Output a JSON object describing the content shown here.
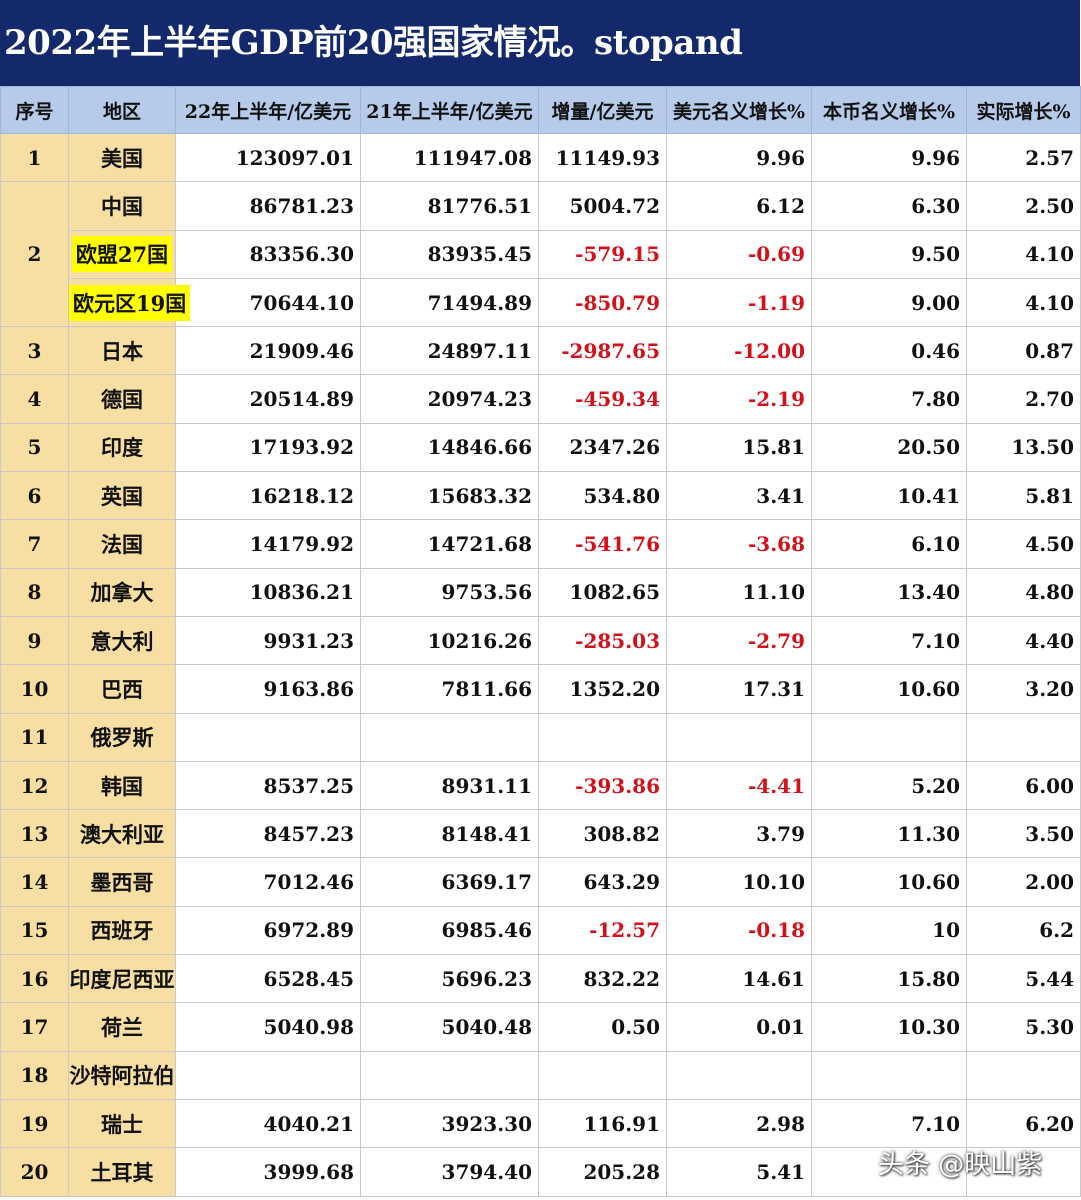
{
  "title": "2022年上半年GDP前20强国家情况。stopand",
  "headers": [
    "序号",
    "地区",
    "22年上半年/亿美元",
    "21年上半年/亿美元",
    "增量/亿美元",
    "美元名义增长%",
    "本币名义增长%",
    "实际增长%"
  ],
  "rows": [
    {
      "rank": "1",
      "region": "美国",
      "gdp22": "123097.01",
      "gdp21": "111947.08",
      "delta": "11149.93",
      "usd_growth": "9.96",
      "local_growth": "9.96",
      "real_growth": "2.57"
    },
    {
      "rank": "2",
      "region": "中国",
      "gdp22": "86781.23",
      "gdp21": "81776.51",
      "delta": "5004.72",
      "usd_growth": "6.12",
      "local_growth": "6.30",
      "real_growth": "2.50"
    },
    {
      "rank": "",
      "region": "欧盟27国",
      "highlight": true,
      "gdp22": "83356.30",
      "gdp21": "83935.45",
      "delta": "-579.15",
      "usd_growth": "-0.69",
      "local_growth": "9.50",
      "real_growth": "4.10"
    },
    {
      "rank": "",
      "region": "欧元区19国",
      "highlight": true,
      "gdp22": "70644.10",
      "gdp21": "71494.89",
      "delta": "-850.79",
      "usd_growth": "-1.19",
      "local_growth": "9.00",
      "real_growth": "4.10"
    },
    {
      "rank": "3",
      "region": "日本",
      "gdp22": "21909.46",
      "gdp21": "24897.11",
      "delta": "-2987.65",
      "usd_growth": "-12.00",
      "local_growth": "0.46",
      "real_growth": "0.87"
    },
    {
      "rank": "4",
      "region": "德国",
      "gdp22": "20514.89",
      "gdp21": "20974.23",
      "delta": "-459.34",
      "usd_growth": "-2.19",
      "local_growth": "7.80",
      "real_growth": "2.70"
    },
    {
      "rank": "5",
      "region": "印度",
      "gdp22": "17193.92",
      "gdp21": "14846.66",
      "delta": "2347.26",
      "usd_growth": "15.81",
      "local_growth": "20.50",
      "real_growth": "13.50"
    },
    {
      "rank": "6",
      "region": "英国",
      "gdp22": "16218.12",
      "gdp21": "15683.32",
      "delta": "534.80",
      "usd_growth": "3.41",
      "local_growth": "10.41",
      "real_growth": "5.81"
    },
    {
      "rank": "7",
      "region": "法国",
      "gdp22": "14179.92",
      "gdp21": "14721.68",
      "delta": "-541.76",
      "usd_growth": "-3.68",
      "local_growth": "6.10",
      "real_growth": "4.50"
    },
    {
      "rank": "8",
      "region": "加拿大",
      "gdp22": "10836.21",
      "gdp21": "9753.56",
      "delta": "1082.65",
      "usd_growth": "11.10",
      "local_growth": "13.40",
      "real_growth": "4.80"
    },
    {
      "rank": "9",
      "region": "意大利",
      "gdp22": "9931.23",
      "gdp21": "10216.26",
      "delta": "-285.03",
      "usd_growth": "-2.79",
      "local_growth": "7.10",
      "real_growth": "4.40"
    },
    {
      "rank": "10",
      "region": "巴西",
      "gdp22": "9163.86",
      "gdp21": "7811.66",
      "delta": "1352.20",
      "usd_growth": "17.31",
      "local_growth": "10.60",
      "real_growth": "3.20"
    },
    {
      "rank": "11",
      "region": "俄罗斯",
      "gdp22": "",
      "gdp21": "",
      "delta": "",
      "usd_growth": "",
      "local_growth": "",
      "real_growth": ""
    },
    {
      "rank": "12",
      "region": "韩国",
      "gdp22": "8537.25",
      "gdp21": "8931.11",
      "delta": "-393.86",
      "usd_growth": "-4.41",
      "local_growth": "5.20",
      "real_growth": "6.00"
    },
    {
      "rank": "13",
      "region": "澳大利亚",
      "gdp22": "8457.23",
      "gdp21": "8148.41",
      "delta": "308.82",
      "usd_growth": "3.79",
      "local_growth": "11.30",
      "real_growth": "3.50"
    },
    {
      "rank": "14",
      "region": "墨西哥",
      "gdp22": "7012.46",
      "gdp21": "6369.17",
      "delta": "643.29",
      "usd_growth": "10.10",
      "local_growth": "10.60",
      "real_growth": "2.00"
    },
    {
      "rank": "15",
      "region": "西班牙",
      "gdp22": "6972.89",
      "gdp21": "6985.46",
      "delta": "-12.57",
      "usd_growth": "-0.18",
      "local_growth": "10",
      "real_growth": "6.2"
    },
    {
      "rank": "16",
      "region": "印度尼西亚",
      "gdp22": "6528.45",
      "gdp21": "5696.23",
      "delta": "832.22",
      "usd_growth": "14.61",
      "local_growth": "15.80",
      "real_growth": "5.44"
    },
    {
      "rank": "17",
      "region": "荷兰",
      "gdp22": "5040.98",
      "gdp21": "5040.48",
      "delta": "0.50",
      "usd_growth": "0.01",
      "local_growth": "10.30",
      "real_growth": "5.30"
    },
    {
      "rank": "18",
      "region": "沙特阿拉伯",
      "gdp22": "",
      "gdp21": "",
      "delta": "",
      "usd_growth": "",
      "local_growth": "",
      "real_growth": ""
    },
    {
      "rank": "19",
      "region": "瑞士",
      "gdp22": "4040.21",
      "gdp21": "3923.30",
      "delta": "116.91",
      "usd_growth": "2.98",
      "local_growth": "7.10",
      "real_growth": "6.20"
    },
    {
      "rank": "20",
      "region": "土耳其",
      "gdp22": "3999.68",
      "gdp21": "3794.40",
      "delta": "205.28",
      "usd_growth": "5.41",
      "local_growth": "",
      "real_growth": ""
    }
  ],
  "watermark": "头条 @映山紫"
}
